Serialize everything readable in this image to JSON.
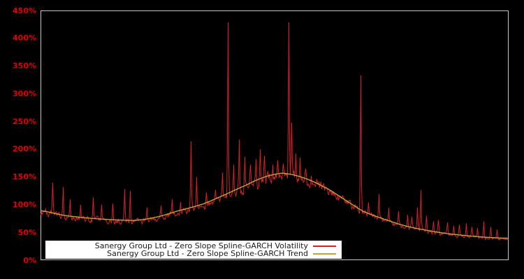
{
  "axis": {
    "label_color": "#e10000",
    "y_tick_labels": [
      "0%",
      "50%",
      "100%",
      "150%",
      "200%",
      "250%",
      "300%",
      "350%",
      "400%",
      "450%"
    ],
    "y_tick_values": [
      0,
      50,
      100,
      150,
      200,
      250,
      300,
      350,
      400,
      450
    ]
  },
  "legend": {
    "background": "#ffffff",
    "text_color": "#1a1a1a",
    "position": "bottom-left-inside"
  },
  "frame": {
    "border_color": "#c8c8c8",
    "background": "#000000"
  },
  "chart_data": {
    "type": "line",
    "title": "",
    "xlabel": "",
    "ylabel": "",
    "x_axis_labels_visible": false,
    "grid": false,
    "ylim": [
      0,
      450
    ],
    "y_unit": "percent",
    "y_tick_labels": [
      "0%",
      "50%",
      "100%",
      "150%",
      "200%",
      "250%",
      "300%",
      "350%",
      "400%",
      "450%"
    ],
    "legend_position": "bottom-left",
    "series": [
      {
        "name": "Sanergy Group Ltd - Zero Slope Spline-GARCH Volatility",
        "color": "#d32228",
        "style": "noisy-line",
        "description": "daily volatility oscillating around the trend with needle spikes",
        "noise": {
          "seed": 97531,
          "amplitude": 6,
          "bias": -3,
          "smoothing": 0.5
        },
        "spikes": [
          [
            0.025,
            140
          ],
          [
            0.048,
            132
          ],
          [
            0.063,
            110
          ],
          [
            0.085,
            100
          ],
          [
            0.112,
            113
          ],
          [
            0.13,
            100
          ],
          [
            0.154,
            102
          ],
          [
            0.179,
            128
          ],
          [
            0.191,
            125
          ],
          [
            0.227,
            95
          ],
          [
            0.257,
            98
          ],
          [
            0.281,
            110
          ],
          [
            0.299,
            105
          ],
          [
            0.321,
            214
          ],
          [
            0.333,
            150
          ],
          [
            0.354,
            122
          ],
          [
            0.373,
            127
          ],
          [
            0.388,
            158
          ],
          [
            0.4,
            428
          ],
          [
            0.413,
            172
          ],
          [
            0.425,
            217
          ],
          [
            0.437,
            186
          ],
          [
            0.448,
            172
          ],
          [
            0.46,
            182
          ],
          [
            0.469,
            200
          ],
          [
            0.479,
            188
          ],
          [
            0.497,
            172
          ],
          [
            0.507,
            180
          ],
          [
            0.518,
            174
          ],
          [
            0.531,
            429
          ],
          [
            0.537,
            248
          ],
          [
            0.545,
            192
          ],
          [
            0.555,
            185
          ],
          [
            0.567,
            165
          ],
          [
            0.579,
            152
          ],
          [
            0.59,
            146
          ],
          [
            0.609,
            131
          ],
          [
            0.627,
            124
          ],
          [
            0.646,
            116
          ],
          [
            0.661,
            108
          ],
          [
            0.684,
            333
          ],
          [
            0.701,
            104
          ],
          [
            0.724,
            119
          ],
          [
            0.745,
            94
          ],
          [
            0.766,
            88
          ],
          [
            0.785,
            82
          ],
          [
            0.794,
            78
          ],
          [
            0.806,
            95
          ],
          [
            0.813,
            126
          ],
          [
            0.825,
            80
          ],
          [
            0.84,
            70
          ],
          [
            0.851,
            72
          ],
          [
            0.87,
            68
          ],
          [
            0.884,
            62
          ],
          [
            0.896,
            64
          ],
          [
            0.91,
            66
          ],
          [
            0.922,
            60
          ],
          [
            0.934,
            58
          ],
          [
            0.948,
            70
          ],
          [
            0.963,
            60
          ],
          [
            0.976,
            55
          ]
        ]
      },
      {
        "name": "Sanergy Group Ltd - Zero Slope Spline-GARCH Trend",
        "color": "#c8a23c",
        "style": "smooth-line",
        "points": [
          [
            0.0,
            89
          ],
          [
            0.048,
            81
          ],
          [
            0.1,
            76
          ],
          [
            0.152,
            73
          ],
          [
            0.204,
            72
          ],
          [
            0.249,
            78
          ],
          [
            0.294,
            89
          ],
          [
            0.346,
            101
          ],
          [
            0.391,
            117
          ],
          [
            0.436,
            134
          ],
          [
            0.473,
            148
          ],
          [
            0.503,
            155
          ],
          [
            0.525,
            156
          ],
          [
            0.57,
            146
          ],
          [
            0.615,
            128
          ],
          [
            0.652,
            108
          ],
          [
            0.69,
            88
          ],
          [
            0.734,
            74
          ],
          [
            0.779,
            62
          ],
          [
            0.824,
            54
          ],
          [
            0.869,
            48
          ],
          [
            0.913,
            44
          ],
          [
            0.958,
            41
          ],
          [
            1.0,
            39.5
          ]
        ]
      }
    ]
  }
}
